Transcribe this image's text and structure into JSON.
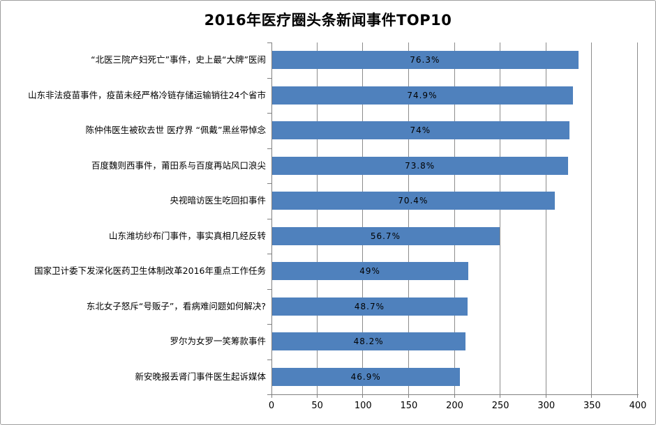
{
  "title": "2016年医疗圈头条新闻事件TOP10",
  "colors": {
    "bar_fill": "#4F81BD",
    "gridline": "#8c8c8c",
    "axis_line": "#7f7f7f",
    "text": "#000000",
    "background": "#ffffff",
    "border": "#9d9d9d"
  },
  "chart_data": {
    "type": "bar",
    "orientation": "horizontal",
    "title": "2016年医疗圈头条新闻事件TOP10",
    "categories": [
      "“北医三院产妇死亡”事件，史上最“大牌”医闹",
      "山东非法疫苗事件，疫苗未经严格冷链存储运输销往24个省市",
      "陈仲伟医生被砍去世 医疗界 “佩戴”黑丝带悼念",
      "百度魏则西事件，莆田系与百度再站风口浪尖",
      "央视暗访医生吃回扣事件",
      "山东潍坊纱布门事件，事实真相几经反转",
      "国家卫计委下发深化医药卫生体制改革2016年重点工作任务",
      "东北女子怒斥“号贩子”，看病难问题如何解决?",
      "罗尔为女罗一笑筹款事件",
      "新安晚报丢肾门事件医生起诉媒体"
    ],
    "values": [
      335,
      329,
      325,
      324,
      309,
      249,
      215,
      214,
      212,
      206
    ],
    "data_labels": [
      "76.3%",
      "74.9%",
      "74%",
      "73.8%",
      "70.4%",
      "56.7%",
      "49%",
      "48.7%",
      "48.2%",
      "46.9%"
    ],
    "percentages": [
      76.3,
      74.9,
      74,
      73.8,
      70.4,
      56.7,
      49,
      48.7,
      48.2,
      46.9
    ],
    "xlabel": "",
    "ylabel": "",
    "xlim": [
      0,
      400
    ],
    "xticks": [
      0,
      50,
      100,
      150,
      200,
      250,
      300,
      350,
      400
    ],
    "grid": true,
    "legend": false
  }
}
